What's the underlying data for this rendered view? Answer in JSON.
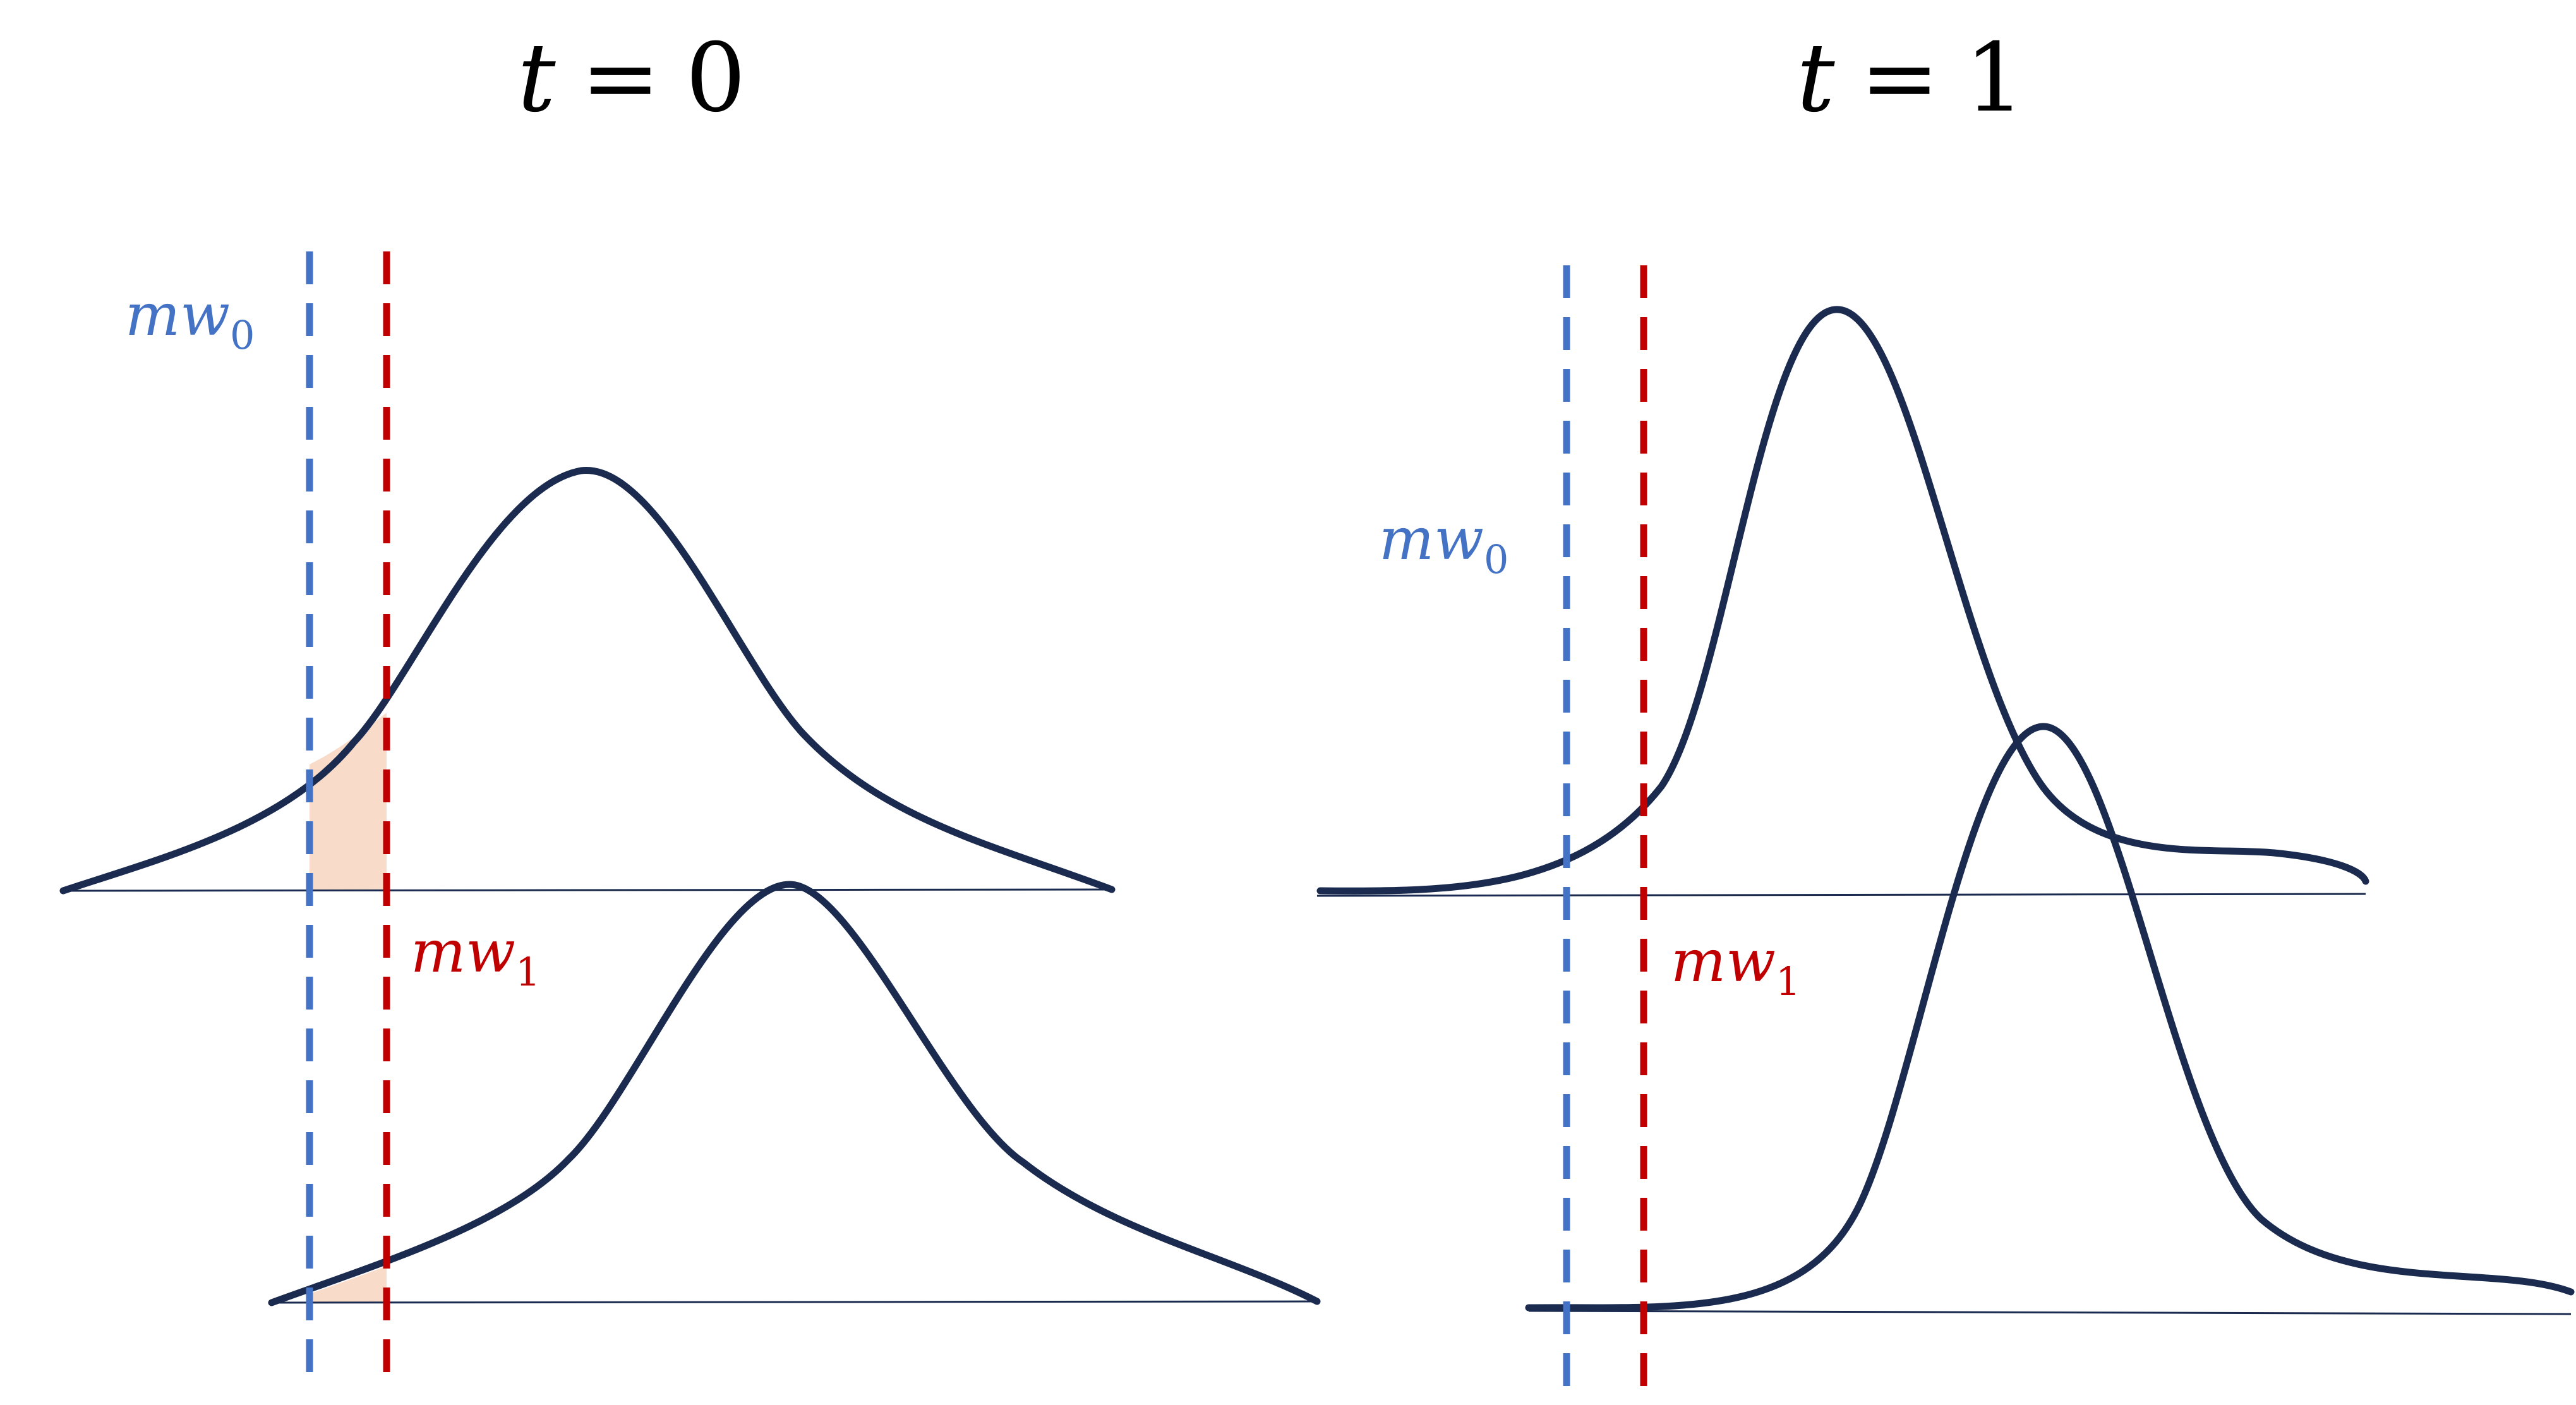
{
  "panels": [
    {
      "title": {
        "var": "t",
        "op": "=",
        "value": "0"
      },
      "labels": {
        "mw0": {
          "base": "mw",
          "sub": "0"
        },
        "mw1": {
          "base": "mw",
          "sub": "1"
        }
      }
    },
    {
      "title": {
        "var": "t",
        "op": "=",
        "value": "1"
      },
      "labels": {
        "mw0": {
          "base": "mw",
          "sub": "0"
        },
        "mw1": {
          "base": "mw",
          "sub": "1"
        }
      }
    }
  ],
  "colors": {
    "mw0": "#4472c4",
    "mw1": "#c00000",
    "curve": "#1a2b4f",
    "shaded_region": "#f8dcc9"
  }
}
